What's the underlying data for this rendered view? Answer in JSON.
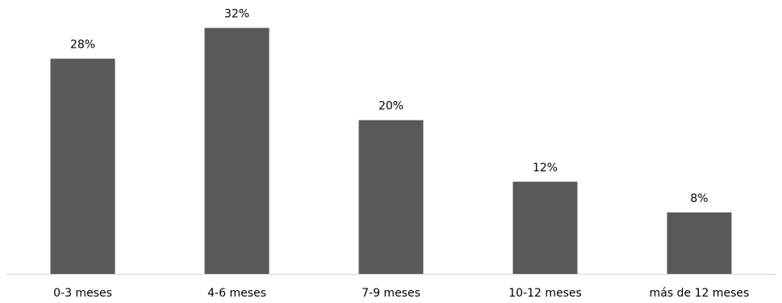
{
  "chart_data": {
    "type": "bar",
    "categories": [
      "0-3 meses",
      "4-6 meses",
      "7-9 meses",
      "10-12 meses",
      "más de 12 meses"
    ],
    "values": [
      28,
      32,
      20,
      12,
      8
    ],
    "value_labels": [
      "28%",
      "32%",
      "20%",
      "12%",
      "8%"
    ],
    "title": "",
    "xlabel": "",
    "ylabel": "",
    "ylim": [
      0,
      35
    ],
    "grid": false,
    "legend": "none",
    "bar_color": "#595959"
  }
}
